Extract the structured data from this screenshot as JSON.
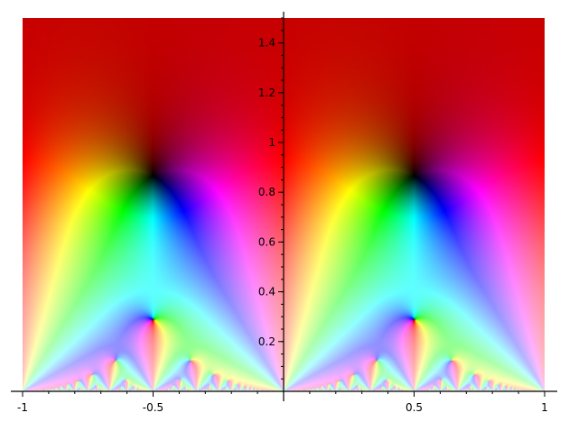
{
  "chart_data": {
    "type": "heatmap",
    "style": "complex domain coloring (hue = argument, lightness = magnitude)",
    "xlim": [
      -1,
      1
    ],
    "ylim": [
      0,
      1.5
    ],
    "x_ticks": [
      {
        "value": -1,
        "label": "-1"
      },
      {
        "value": -0.5,
        "label": "-0.5"
      },
      {
        "value": 0.5,
        "label": "0.5"
      },
      {
        "value": 1,
        "label": "1"
      }
    ],
    "y_ticks": [
      {
        "value": 0.2,
        "label": "0.2"
      },
      {
        "value": 0.4,
        "label": "0.4"
      },
      {
        "value": 0.6,
        "label": "0.6"
      },
      {
        "value": 0.8,
        "label": "0.8"
      },
      {
        "value": 1.0,
        "label": "1"
      },
      {
        "value": 1.2,
        "label": "1.2"
      },
      {
        "value": 1.4,
        "label": "1.4"
      }
    ],
    "x_minor_step": 0.1,
    "y_minor_step": 0.05,
    "zeros": [
      {
        "x": -0.5,
        "y": 0.866
      },
      {
        "x": 0.5,
        "y": 0.866
      },
      {
        "x": -0.5,
        "y": 0.289
      },
      {
        "x": 0.5,
        "y": 0.289
      }
    ],
    "axes_origin": [
      0,
      0
    ],
    "grid": false,
    "background_color": "#c00000"
  }
}
